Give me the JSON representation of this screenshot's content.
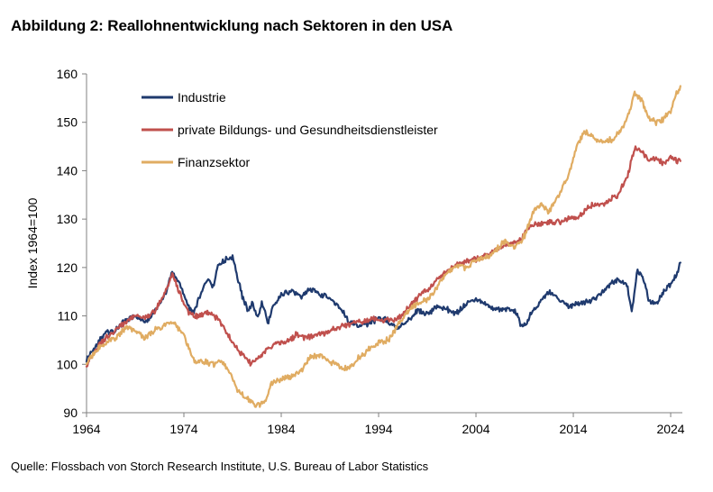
{
  "chart_data": {
    "type": "line",
    "title": "Abbildung 2: Reallohnentwicklung nach Sektoren in den USA",
    "source": "Quelle: Flossbach von Storch Research Institute, U.S. Bureau of Labor Statistics",
    "ylabel": "Index 1964=100",
    "xlabel": "",
    "xlim": [
      1964,
      2025.2
    ],
    "ylim": [
      90,
      160
    ],
    "x_ticks": [
      1964,
      1974,
      1984,
      1994,
      2004,
      2014,
      2024
    ],
    "y_ticks": [
      90,
      100,
      110,
      120,
      130,
      140,
      150,
      160
    ],
    "grid": false,
    "legend_position": "top-left",
    "series": [
      {
        "name": "Industrie",
        "color": "#1f3a6e",
        "points": [
          [
            1964.0,
            101.0
          ],
          [
            1965.0,
            104.0
          ],
          [
            1966.0,
            106.5
          ],
          [
            1967.0,
            107.0
          ],
          [
            1968.0,
            109.0
          ],
          [
            1969.0,
            110.0
          ],
          [
            1970.0,
            108.5
          ],
          [
            1971.0,
            111.0
          ],
          [
            1972.0,
            114.0
          ],
          [
            1972.8,
            119.0
          ],
          [
            1973.5,
            117.0
          ],
          [
            1974.5,
            112.0
          ],
          [
            1975.0,
            110.5
          ],
          [
            1975.8,
            115.0
          ],
          [
            1976.5,
            117.5
          ],
          [
            1977.0,
            116.0
          ],
          [
            1977.5,
            120.0
          ],
          [
            1978.0,
            121.5
          ],
          [
            1979.0,
            122.0
          ],
          [
            1979.5,
            118.0
          ],
          [
            1980.0,
            114.0
          ],
          [
            1980.6,
            111.0
          ],
          [
            1981.0,
            112.5
          ],
          [
            1981.6,
            109.5
          ],
          [
            1982.0,
            113.0
          ],
          [
            1982.6,
            108.5
          ],
          [
            1983.2,
            112.0
          ],
          [
            1984.0,
            114.5
          ],
          [
            1985.0,
            115.0
          ],
          [
            1986.0,
            114.0
          ],
          [
            1987.0,
            115.5
          ],
          [
            1988.0,
            114.5
          ],
          [
            1989.0,
            113.5
          ],
          [
            1990.0,
            112.0
          ],
          [
            1991.0,
            108.5
          ],
          [
            1992.0,
            108.0
          ],
          [
            1993.0,
            108.5
          ],
          [
            1994.0,
            109.5
          ],
          [
            1995.0,
            109.0
          ],
          [
            1996.0,
            107.5
          ],
          [
            1997.0,
            109.0
          ],
          [
            1998.0,
            111.0
          ],
          [
            1999.0,
            110.5
          ],
          [
            2000.0,
            112.0
          ],
          [
            2001.0,
            111.5
          ],
          [
            2002.0,
            110.5
          ],
          [
            2003.0,
            112.5
          ],
          [
            2004.0,
            113.5
          ],
          [
            2005.0,
            112.5
          ],
          [
            2006.0,
            111.0
          ],
          [
            2007.0,
            111.5
          ],
          [
            2008.0,
            111.0
          ],
          [
            2008.8,
            107.5
          ],
          [
            2009.5,
            110.0
          ],
          [
            2010.5,
            112.5
          ],
          [
            2011.5,
            115.0
          ],
          [
            2012.5,
            113.5
          ],
          [
            2013.5,
            112.0
          ],
          [
            2014.5,
            112.5
          ],
          [
            2015.5,
            113.0
          ],
          [
            2016.5,
            114.0
          ],
          [
            2017.5,
            116.0
          ],
          [
            2018.5,
            117.5
          ],
          [
            2019.5,
            116.5
          ],
          [
            2020.0,
            111.0
          ],
          [
            2020.6,
            119.5
          ],
          [
            2021.2,
            117.5
          ],
          [
            2021.8,
            113.0
          ],
          [
            2022.5,
            112.5
          ],
          [
            2023.3,
            115.0
          ],
          [
            2024.0,
            116.5
          ],
          [
            2024.6,
            118.5
          ],
          [
            2025.0,
            121.0
          ]
        ]
      },
      {
        "name": "private Bildungs- und Gesundheitsdienstleister",
        "color": "#c0504d",
        "points": [
          [
            1964.0,
            100.0
          ],
          [
            1965.0,
            103.0
          ],
          [
            1966.0,
            105.5
          ],
          [
            1967.0,
            107.0
          ],
          [
            1968.0,
            108.5
          ],
          [
            1969.0,
            110.0
          ],
          [
            1970.0,
            109.5
          ],
          [
            1971.0,
            111.0
          ],
          [
            1972.0,
            114.5
          ],
          [
            1972.8,
            118.5
          ],
          [
            1973.5,
            115.0
          ],
          [
            1974.5,
            110.5
          ],
          [
            1975.5,
            110.0
          ],
          [
            1976.5,
            110.5
          ],
          [
            1977.5,
            109.5
          ],
          [
            1978.5,
            106.0
          ],
          [
            1979.5,
            103.0
          ],
          [
            1980.3,
            101.5
          ],
          [
            1981.0,
            100.0
          ],
          [
            1981.6,
            101.0
          ],
          [
            1982.5,
            103.0
          ],
          [
            1983.5,
            104.5
          ],
          [
            1984.5,
            104.5
          ],
          [
            1985.5,
            106.0
          ],
          [
            1986.5,
            105.5
          ],
          [
            1987.5,
            106.0
          ],
          [
            1988.5,
            106.5
          ],
          [
            1989.5,
            107.5
          ],
          [
            1990.5,
            108.0
          ],
          [
            1991.5,
            108.5
          ],
          [
            1992.5,
            109.0
          ],
          [
            1993.5,
            109.5
          ],
          [
            1994.5,
            109.0
          ],
          [
            1995.5,
            109.0
          ],
          [
            1996.5,
            110.5
          ],
          [
            1997.5,
            112.5
          ],
          [
            1998.5,
            115.0
          ],
          [
            1999.5,
            116.0
          ],
          [
            2000.5,
            118.5
          ],
          [
            2001.5,
            120.0
          ],
          [
            2002.5,
            121.0
          ],
          [
            2003.5,
            121.5
          ],
          [
            2004.5,
            122.0
          ],
          [
            2005.5,
            123.0
          ],
          [
            2006.5,
            124.0
          ],
          [
            2007.5,
            125.0
          ],
          [
            2008.5,
            125.5
          ],
          [
            2009.5,
            128.5
          ],
          [
            2010.5,
            129.0
          ],
          [
            2011.5,
            129.5
          ],
          [
            2012.5,
            129.5
          ],
          [
            2013.5,
            130.0
          ],
          [
            2014.5,
            130.5
          ],
          [
            2015.5,
            132.5
          ],
          [
            2016.5,
            133.0
          ],
          [
            2017.5,
            133.5
          ],
          [
            2018.5,
            135.0
          ],
          [
            2019.5,
            138.5
          ],
          [
            2020.3,
            144.5
          ],
          [
            2021.0,
            144.0
          ],
          [
            2021.8,
            142.0
          ],
          [
            2022.5,
            142.5
          ],
          [
            2023.3,
            141.5
          ],
          [
            2024.0,
            143.0
          ],
          [
            2024.6,
            142.0
          ],
          [
            2025.0,
            142.0
          ]
        ]
      },
      {
        "name": "Finanzsektor",
        "color": "#e0ac62",
        "points": [
          [
            1964.0,
            100.0
          ],
          [
            1965.0,
            103.0
          ],
          [
            1966.0,
            104.5
          ],
          [
            1967.0,
            105.5
          ],
          [
            1968.0,
            107.5
          ],
          [
            1969.0,
            107.0
          ],
          [
            1970.0,
            105.5
          ],
          [
            1971.0,
            107.0
          ],
          [
            1972.0,
            108.0
          ],
          [
            1973.0,
            108.5
          ],
          [
            1974.0,
            106.0
          ],
          [
            1974.5,
            103.0
          ],
          [
            1975.0,
            101.0
          ],
          [
            1976.0,
            100.5
          ],
          [
            1977.0,
            100.0
          ],
          [
            1978.0,
            100.5
          ],
          [
            1978.8,
            98.0
          ],
          [
            1979.5,
            94.5
          ],
          [
            1980.5,
            93.0
          ],
          [
            1981.3,
            91.5
          ],
          [
            1981.8,
            91.5
          ],
          [
            1982.5,
            93.0
          ],
          [
            1983.0,
            96.0
          ],
          [
            1984.0,
            97.0
          ],
          [
            1985.0,
            97.5
          ],
          [
            1986.0,
            98.5
          ],
          [
            1987.0,
            101.5
          ],
          [
            1988.0,
            102.0
          ],
          [
            1989.0,
            100.5
          ],
          [
            1990.0,
            99.5
          ],
          [
            1991.0,
            99.0
          ],
          [
            1992.0,
            101.5
          ],
          [
            1993.0,
            103.0
          ],
          [
            1994.0,
            104.5
          ],
          [
            1995.0,
            105.0
          ],
          [
            1996.0,
            108.0
          ],
          [
            1997.0,
            111.0
          ],
          [
            1998.0,
            112.5
          ],
          [
            1999.0,
            113.5
          ],
          [
            2000.0,
            116.0
          ],
          [
            2001.0,
            119.0
          ],
          [
            2002.0,
            120.5
          ],
          [
            2003.0,
            120.0
          ],
          [
            2004.0,
            121.5
          ],
          [
            2005.0,
            122.0
          ],
          [
            2006.0,
            123.5
          ],
          [
            2007.0,
            125.5
          ],
          [
            2008.0,
            124.0
          ],
          [
            2009.0,
            126.5
          ],
          [
            2010.0,
            132.0
          ],
          [
            2010.8,
            133.0
          ],
          [
            2011.5,
            131.5
          ],
          [
            2012.5,
            135.0
          ],
          [
            2013.5,
            139.0
          ],
          [
            2014.5,
            146.0
          ],
          [
            2015.2,
            148.0
          ],
          [
            2016.0,
            147.0
          ],
          [
            2017.0,
            146.0
          ],
          [
            2018.0,
            146.5
          ],
          [
            2019.0,
            148.5
          ],
          [
            2019.8,
            152.5
          ],
          [
            2020.3,
            156.0
          ],
          [
            2021.0,
            154.5
          ],
          [
            2021.8,
            151.0
          ],
          [
            2022.5,
            150.0
          ],
          [
            2023.2,
            150.5
          ],
          [
            2024.0,
            152.5
          ],
          [
            2024.6,
            156.0
          ],
          [
            2025.0,
            157.5
          ]
        ]
      }
    ]
  }
}
